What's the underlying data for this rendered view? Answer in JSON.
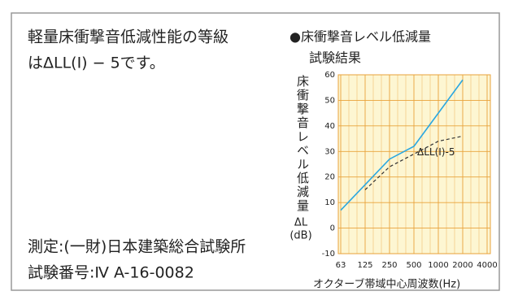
{
  "header": {
    "lines": [
      "軽量床衝撃音低減性能の等級",
      "はΔLL(I) − 5です。"
    ]
  },
  "footer": {
    "lines": [
      "測定:(一財)日本建築総合試験所",
      "試験番号:Ⅳ A-16-0082"
    ]
  },
  "chart_data": {
    "type": "line",
    "title": "●床衝撃音レベル低減量",
    "subtitle": "試験結果",
    "y_label": [
      "床衝撃音レベル低減量",
      "ΔL",
      "(dB)"
    ],
    "x_label": "オクターブ帯域中心周波数(Hz)",
    "categories": [
      "63",
      "125",
      "250",
      "500",
      "1000",
      "2000",
      "4000"
    ],
    "series": [
      {
        "color": "#2aa7e0",
        "dash": false,
        "values": [
          7,
          17,
          27,
          32,
          45,
          58,
          null
        ]
      },
      {
        "name": "ΔLL(I)-5",
        "color": "#333333",
        "dash": true,
        "values": [
          null,
          15,
          24,
          29,
          34,
          36,
          null
        ]
      }
    ],
    "ylim": [
      -10,
      60
    ],
    "yticks": [
      -10,
      0,
      10,
      20,
      30,
      40,
      50,
      60
    ],
    "grid": true,
    "grid_color": "#e8a23a",
    "plot_background": "#fdf6d2"
  }
}
